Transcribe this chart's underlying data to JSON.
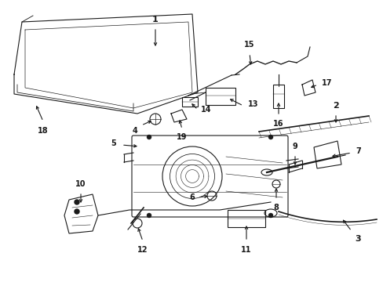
{
  "bg_color": "#ffffff",
  "line_color": "#1a1a1a",
  "fig_width": 4.89,
  "fig_height": 3.6,
  "dpi": 100,
  "label_fs": 8,
  "small_fs": 7
}
